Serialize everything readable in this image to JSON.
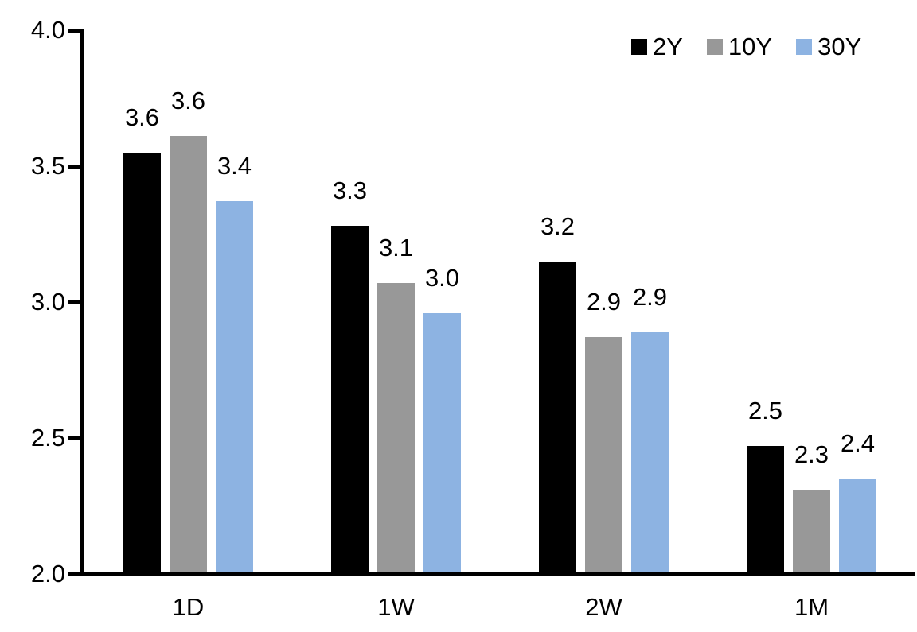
{
  "chart_data": {
    "type": "bar",
    "title": "",
    "categories": [
      "1D",
      "1W",
      "2W",
      "1M"
    ],
    "series": [
      {
        "name": "2Y",
        "color": "#000000",
        "values": [
          3.55,
          3.28,
          3.15,
          2.47
        ],
        "data_labels": [
          "3.6",
          "3.3",
          "3.2",
          "2.5"
        ]
      },
      {
        "name": "10Y",
        "color": "#989898",
        "values": [
          3.61,
          3.07,
          2.87,
          2.31
        ],
        "data_labels": [
          "3.6",
          "3.1",
          "2.9",
          "2.3"
        ]
      },
      {
        "name": "30Y",
        "color": "#8DB3E2",
        "values": [
          3.37,
          2.96,
          2.89,
          2.35
        ],
        "data_labels": [
          "3.4",
          "3.0",
          "2.9",
          "2.4"
        ]
      }
    ],
    "xlabel": "",
    "ylabel": "",
    "ylim": [
      2.0,
      4.0
    ],
    "y_axis": {
      "min": 2.0,
      "max": 4.0,
      "tick_step": 0.5,
      "tick_labels": [
        "2.0",
        "2.5",
        "3.0",
        "3.5",
        "4.0"
      ]
    },
    "grid": false,
    "legend": {
      "position": "top-right",
      "entries": [
        "2Y",
        "10Y",
        "30Y"
      ]
    }
  },
  "style": {
    "background": "#FFFFFF",
    "axis_color": "#000000",
    "text_color": "#000000"
  }
}
